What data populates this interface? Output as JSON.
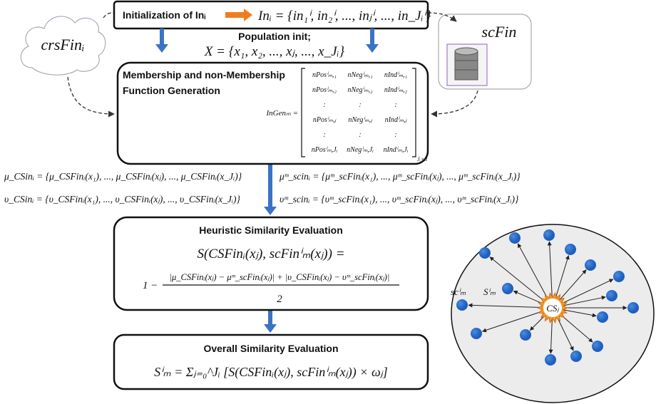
{
  "init_box": {
    "label": "Initialization of Inᵢ",
    "formula": "Inᵢ = {in₁ⁱ, in₂ⁱ, ..., inⱼⁱ, ..., in_Jᵢⁱ}"
  },
  "population": {
    "label": "Population init;",
    "formula": "X = {x₁, x₂, ..., xⱼ, ..., x_Jᵢ}"
  },
  "cloud": "crsFinᵢ",
  "database": "scFin",
  "membership_box": {
    "title_line1": "Membership and non-Membership",
    "title_line2": "Function Generation",
    "matrix_label": "InGenₘ =",
    "matrix_rows": [
      [
        "nPosⁱₘ,₁",
        "nNegⁱₘ,₁",
        "nIndⁱₘ,₁"
      ],
      [
        "nPosⁱₘ,₂",
        "nNegⁱₘ,₂",
        "nIndⁱₘ,₂"
      ],
      [
        ":",
        ":",
        ":"
      ],
      [
        "nPosⁱₘ,ⱼ",
        "nNegⁱₘ,ⱼ",
        "nIndⁱₘ,ⱼ"
      ],
      [
        ":",
        ":",
        ":"
      ],
      [
        "nPosⁱₘ,Jᵢ",
        "nNegⁱₘ,Jᵢ",
        "nIndⁱₘ,Jᵢ"
      ]
    ],
    "matrix_size": "Jᵢ×3"
  },
  "membership_functions": {
    "mu_cs": "μ_CSinᵢ = {μ_CSFinᵢ(x₁), ..., μ_CSFinᵢ(xⱼ), ..., μ_CSFinᵢ(x_Jᵢ)}",
    "upsilon_cs": "υ_CSinᵢ = {υ_CSFinᵢ(x₁), ..., υ_CSFinᵢ(xⱼ), ..., υ_CSFinᵢ(x_Jᵢ)}",
    "mu_sc": "μᵐ_scinᵢ = {μᵐ_scFinᵢ(x₁), ..., μᵐ_scFinᵢ(xⱼ), ..., μᵐ_scFinᵢ(x_Jᵢ)}",
    "upsilon_sc": "υᵐ_scinᵢ = {υᵐ_scFinᵢ(x₁), ..., υᵐ_scFinᵢ(xⱼ), ..., υᵐ_scFinᵢ(x_Jᵢ)}"
  },
  "heuristic_box": {
    "title": "Heuristic Similarity Evaluation",
    "formula_line1": "S(CSFinᵢ(xⱼ), scFinⁱₘ(xⱼ)) =",
    "prefix": "1 −",
    "numerator": "|μ_CSFinᵢ(xⱼ) − μᵐ_scFinᵢ(xⱼ)| + |υ_CSFinᵢ(xⱼ) − υᵐ_scFinᵢ(xⱼ)|",
    "denominator": "2"
  },
  "overall_box": {
    "title": "Overall Similarity Evaluation",
    "formula": "Sⁱₘ = Σⱼ₌₀^Jᵢ [S(CSFinᵢ(xⱼ), scFinⁱₘ(xⱼ)) × ωⱼ]"
  },
  "network": {
    "center": "CSⱼ",
    "node_label": "scⁱₘ",
    "edge_label": "Sⁱₘ"
  }
}
